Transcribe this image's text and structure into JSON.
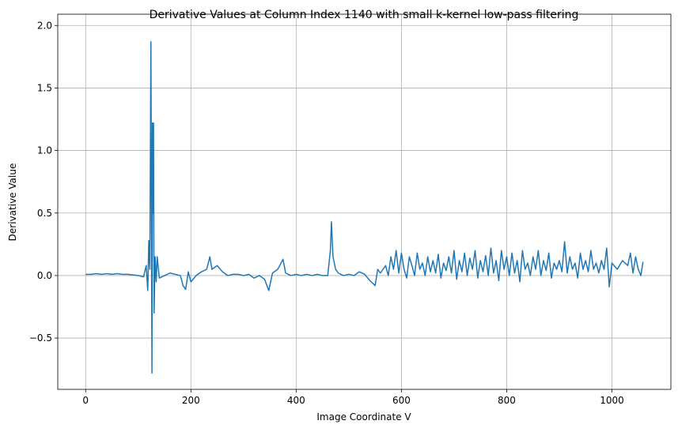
{
  "chart_data": {
    "type": "line",
    "title": "Derivative Values at Column Index 1140 with small k-kernel low-pass filtering",
    "x_label": "Image Coordinate V",
    "y_label": "Derivative Value",
    "color": "#1f77b4",
    "grid": true,
    "xlim": [
      -53,
      1112
    ],
    "ylim": [
      -0.91,
      2.09
    ],
    "xticks": [
      0,
      200,
      400,
      600,
      800,
      1000
    ],
    "yticks": [
      {
        "value": -0.5,
        "label": "−0.5"
      },
      {
        "value": 0,
        "label": "0.0"
      },
      0.5,
      {
        "value": 1,
        "label": "1.0"
      },
      1.5,
      {
        "value": 2,
        "label": "2.0"
      }
    ],
    "x": [
      0,
      10,
      20,
      30,
      40,
      50,
      60,
      70,
      80,
      90,
      100,
      110,
      115,
      118,
      120,
      122,
      124,
      126,
      127,
      128,
      129,
      130,
      132,
      134,
      136,
      140,
      150,
      160,
      170,
      180,
      185,
      190,
      195,
      200,
      210,
      220,
      230,
      236,
      240,
      250,
      260,
      270,
      280,
      290,
      300,
      310,
      320,
      330,
      340,
      348,
      355,
      365,
      375,
      380,
      390,
      400,
      410,
      420,
      430,
      440,
      450,
      460,
      465,
      467,
      470,
      475,
      480,
      490,
      500,
      510,
      520,
      530,
      540,
      550,
      555,
      560,
      570,
      575,
      580,
      585,
      590,
      595,
      600,
      605,
      610,
      615,
      620,
      625,
      630,
      635,
      640,
      645,
      650,
      655,
      660,
      665,
      670,
      675,
      680,
      685,
      690,
      695,
      700,
      705,
      710,
      715,
      720,
      725,
      730,
      735,
      740,
      745,
      750,
      755,
      760,
      765,
      770,
      775,
      780,
      785,
      790,
      795,
      800,
      805,
      810,
      815,
      820,
      825,
      830,
      835,
      840,
      845,
      850,
      855,
      860,
      865,
      870,
      875,
      880,
      885,
      890,
      895,
      900,
      905,
      910,
      915,
      920,
      925,
      930,
      935,
      940,
      945,
      950,
      955,
      960,
      965,
      970,
      975,
      980,
      985,
      990,
      995,
      1000,
      1010,
      1020,
      1030,
      1035,
      1040,
      1045,
      1050,
      1055,
      1059
    ],
    "values": [
      0.01,
      0.01,
      0.015,
      0.01,
      0.015,
      0.01,
      0.015,
      0.01,
      0.01,
      0.005,
      0.0,
      -0.01,
      0.08,
      -0.12,
      0.28,
      0.05,
      1.87,
      -0.78,
      1.22,
      0.5,
      1.22,
      -0.3,
      0.15,
      -0.05,
      0.15,
      -0.02,
      0.0,
      0.02,
      0.01,
      0.0,
      -0.08,
      -0.11,
      0.03,
      -0.05,
      0.0,
      0.03,
      0.05,
      0.15,
      0.05,
      0.08,
      0.03,
      0.0,
      0.01,
      0.01,
      0.0,
      0.01,
      -0.02,
      0.0,
      -0.03,
      -0.12,
      0.02,
      0.05,
      0.13,
      0.02,
      0.0,
      0.01,
      0.0,
      0.01,
      0.0,
      0.01,
      0.0,
      0.0,
      0.2,
      0.43,
      0.15,
      0.05,
      0.02,
      0.0,
      0.01,
      0.0,
      0.03,
      0.01,
      -0.04,
      -0.08,
      0.05,
      0.02,
      0.08,
      0.0,
      0.15,
      0.05,
      0.2,
      0.02,
      0.18,
      0.05,
      -0.02,
      0.15,
      0.08,
      0.0,
      0.18,
      0.05,
      0.1,
      0.0,
      0.15,
      0.03,
      0.12,
      0.02,
      0.17,
      -0.02,
      0.1,
      0.04,
      0.15,
      0.02,
      0.2,
      -0.03,
      0.12,
      0.03,
      0.18,
      0.0,
      0.14,
      0.05,
      0.2,
      -0.02,
      0.12,
      0.03,
      0.16,
      0.0,
      0.22,
      0.02,
      0.12,
      -0.04,
      0.2,
      0.05,
      0.15,
      0.0,
      0.18,
      0.02,
      0.12,
      -0.05,
      0.2,
      0.05,
      0.1,
      0.0,
      0.15,
      0.05,
      0.2,
      0.0,
      0.12,
      0.04,
      0.18,
      -0.02,
      0.1,
      0.05,
      0.12,
      0.03,
      0.27,
      0.02,
      0.15,
      0.05,
      0.1,
      -0.02,
      0.18,
      0.05,
      0.12,
      0.03,
      0.2,
      0.05,
      0.1,
      0.02,
      0.12,
      0.05,
      0.22,
      -0.09,
      0.1,
      0.05,
      0.12,
      0.08,
      0.18,
      0.02,
      0.15,
      0.05,
      0.0,
      0.11
    ]
  }
}
